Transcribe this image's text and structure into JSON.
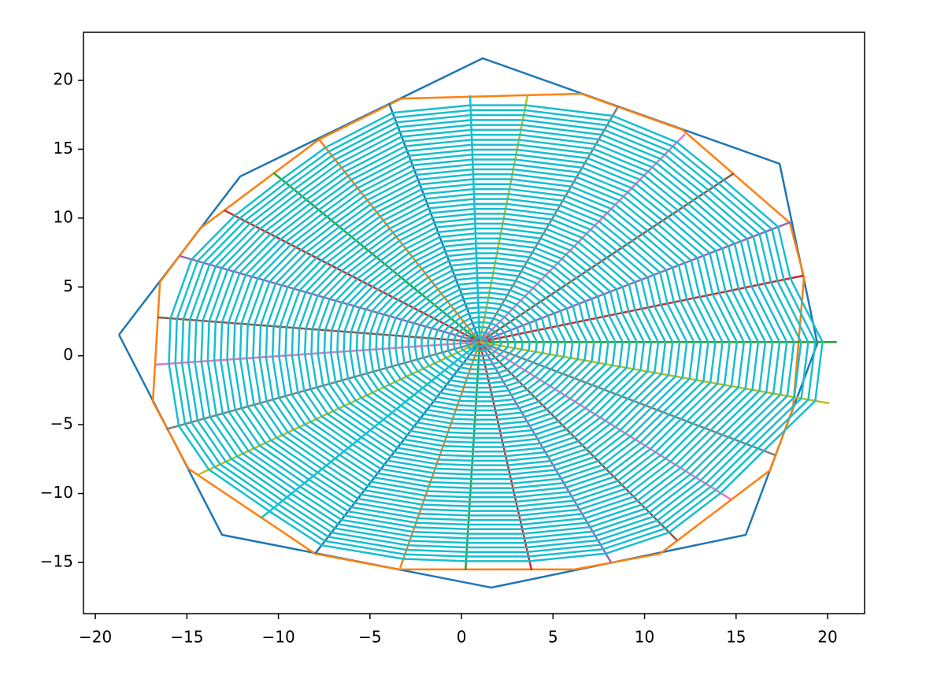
{
  "chart_data": {
    "type": "line",
    "xlim": [
      -20.65,
      22.02
    ],
    "ylim": [
      -18.72,
      23.49
    ],
    "xticks": [
      {
        "value": -20,
        "label": "−20"
      },
      {
        "value": -15,
        "label": "−15"
      },
      {
        "value": -10,
        "label": "−10"
      },
      {
        "value": -5,
        "label": "−5"
      },
      0,
      5,
      10,
      15,
      20
    ],
    "yticks": [
      {
        "value": -15,
        "label": "−15"
      },
      {
        "value": -10,
        "label": "−10"
      },
      {
        "value": -5,
        "label": "−5"
      },
      0,
      5,
      10,
      15,
      20
    ],
    "series": [
      {
        "color": "#1f77b4",
        "x": [
          -18.71,
          -12.09,
          1.16,
          17.38,
          19.44,
          15.53,
          1.63,
          -13.08,
          -18.71
        ],
        "y": [
          1.53,
          13.02,
          21.6,
          13.94,
          0.9,
          -13.0,
          -16.83,
          -13.0,
          1.53
        ]
      },
      {
        "color": "#ff7f0e",
        "x": [
          -16.47,
          -14.28,
          -7.78,
          -3.27,
          6.54,
          12.09,
          17.94,
          18.71,
          18.11,
          16.86,
          10.84,
          6.19,
          -3.44,
          -8.0,
          -14.92,
          -16.86,
          -16.47
        ],
        "y": [
          5.36,
          9.25,
          15.71,
          18.68,
          19.03,
          16.4,
          9.65,
          5.7,
          -3.79,
          -8.31,
          -14.37,
          -15.51,
          -15.51,
          -14.37,
          -8.19,
          -3.33,
          5.36
        ]
      }
    ],
    "web": {
      "color": "#17becf",
      "center": [
        1.0,
        1.0
      ],
      "levels": [
        0.02,
        0.04,
        0.06,
        0.08,
        0.1,
        0.12,
        0.14,
        0.16,
        0.18,
        0.2,
        0.22,
        0.24,
        0.26,
        0.28,
        0.3,
        0.32,
        0.34,
        0.36,
        0.38,
        0.4,
        0.42,
        0.44,
        0.46,
        0.48,
        0.5,
        0.52,
        0.54,
        0.56,
        0.58,
        0.6,
        0.62,
        0.64,
        0.66,
        0.68,
        0.7,
        0.72,
        0.74,
        0.76,
        0.78,
        0.8,
        0.82,
        0.84,
        0.86,
        0.88,
        0.9,
        0.92,
        0.94,
        0.96
      ],
      "spoke_colors": [
        "#2ca02c",
        "#d62728",
        "#9467bd",
        "#8c564b",
        "#e377c2",
        "#7f7f7f",
        "#bcbd22",
        "#17becf",
        "#1f77b4",
        "#ff7f0e",
        "#2ca02c",
        "#d62728",
        "#9467bd",
        "#8c564b",
        "#e377c2",
        "#7f7f7f",
        "#bcbd22",
        "#17becf",
        "#1f77b4",
        "#ff7f0e",
        "#2ca02c",
        "#d62728",
        "#9467bd",
        "#8c564b",
        "#e377c2",
        "#7f7f7f",
        "#bcbd22"
      ],
      "spoke_x": [
        20.5,
        18.67,
        17.98,
        14.88,
        12.22,
        8.56,
        3.61,
        0.47,
        -3.96,
        -7.78,
        -10.28,
        -12.95,
        -15.4,
        -16.6,
        -16.69,
        -16.13,
        -14.41,
        -10.97,
        -8.0,
        -3.35,
        0.22,
        3.83,
        8.17,
        11.78,
        14.71,
        17.16,
        20.09
      ],
      "spoke_y": [
        1.0,
        5.82,
        9.71,
        13.25,
        16.11,
        18.11,
        18.91,
        18.91,
        18.34,
        15.71,
        13.3,
        10.56,
        7.25,
        2.79,
        -0.64,
        -5.33,
        -8.65,
        -11.8,
        -14.37,
        -15.4,
        -15.57,
        -15.57,
        -15.0,
        -13.4,
        -10.42,
        -7.22,
        -3.45
      ]
    }
  }
}
